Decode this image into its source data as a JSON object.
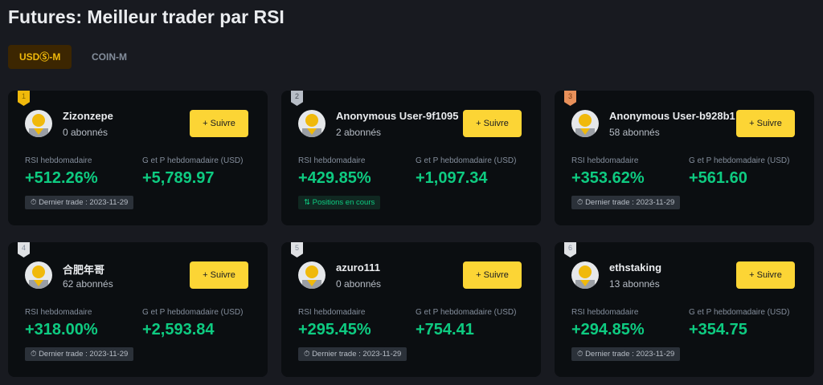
{
  "title": "Futures: Meilleur trader par RSI",
  "tabs": [
    {
      "label": "USDⓈ-M",
      "active": true
    },
    {
      "label": "COIN-M",
      "active": false
    }
  ],
  "labels": {
    "rsi": "RSI hebdomadaire",
    "pnl": "G et P hebdomadaire (USD)",
    "follow": "+ Suivre"
  },
  "colors": {
    "accent": "#fcd535",
    "positive": "#0ecb81",
    "gold": "#f0b90b",
    "silver": "#b7bdc6",
    "bronze": "#e8905a"
  },
  "traders": [
    {
      "rank": "1",
      "name": "Zizonzepe",
      "followers": "0 abonnés",
      "rsi": "+512.26%",
      "pnl": "+5,789.97",
      "tag": "Dernier trade : 2023-11-29",
      "tag_type": "trade"
    },
    {
      "rank": "2",
      "name": "Anonymous User-9f1095",
      "followers": "2 abonnés",
      "rsi": "+429.85%",
      "pnl": "+1,097.34",
      "tag": "Positions en cours",
      "tag_type": "pos"
    },
    {
      "rank": "3",
      "name": "Anonymous User-b928b1",
      "followers": "58 abonnés",
      "rsi": "+353.62%",
      "pnl": "+561.60",
      "tag": "Dernier trade : 2023-11-29",
      "tag_type": "trade"
    },
    {
      "rank": "4",
      "name": "合肥年哥",
      "followers": "62 abonnés",
      "rsi": "+318.00%",
      "pnl": "+2,593.84",
      "tag": "Dernier trade : 2023-11-29",
      "tag_type": "trade"
    },
    {
      "rank": "5",
      "name": "azuro111",
      "followers": "0 abonnés",
      "rsi": "+295.45%",
      "pnl": "+754.41",
      "tag": "Dernier trade : 2023-11-29",
      "tag_type": "trade"
    },
    {
      "rank": "6",
      "name": "ethstaking",
      "followers": "13 abonnés",
      "rsi": "+294.85%",
      "pnl": "+354.75",
      "tag": "Dernier trade : 2023-11-29",
      "tag_type": "trade"
    }
  ]
}
